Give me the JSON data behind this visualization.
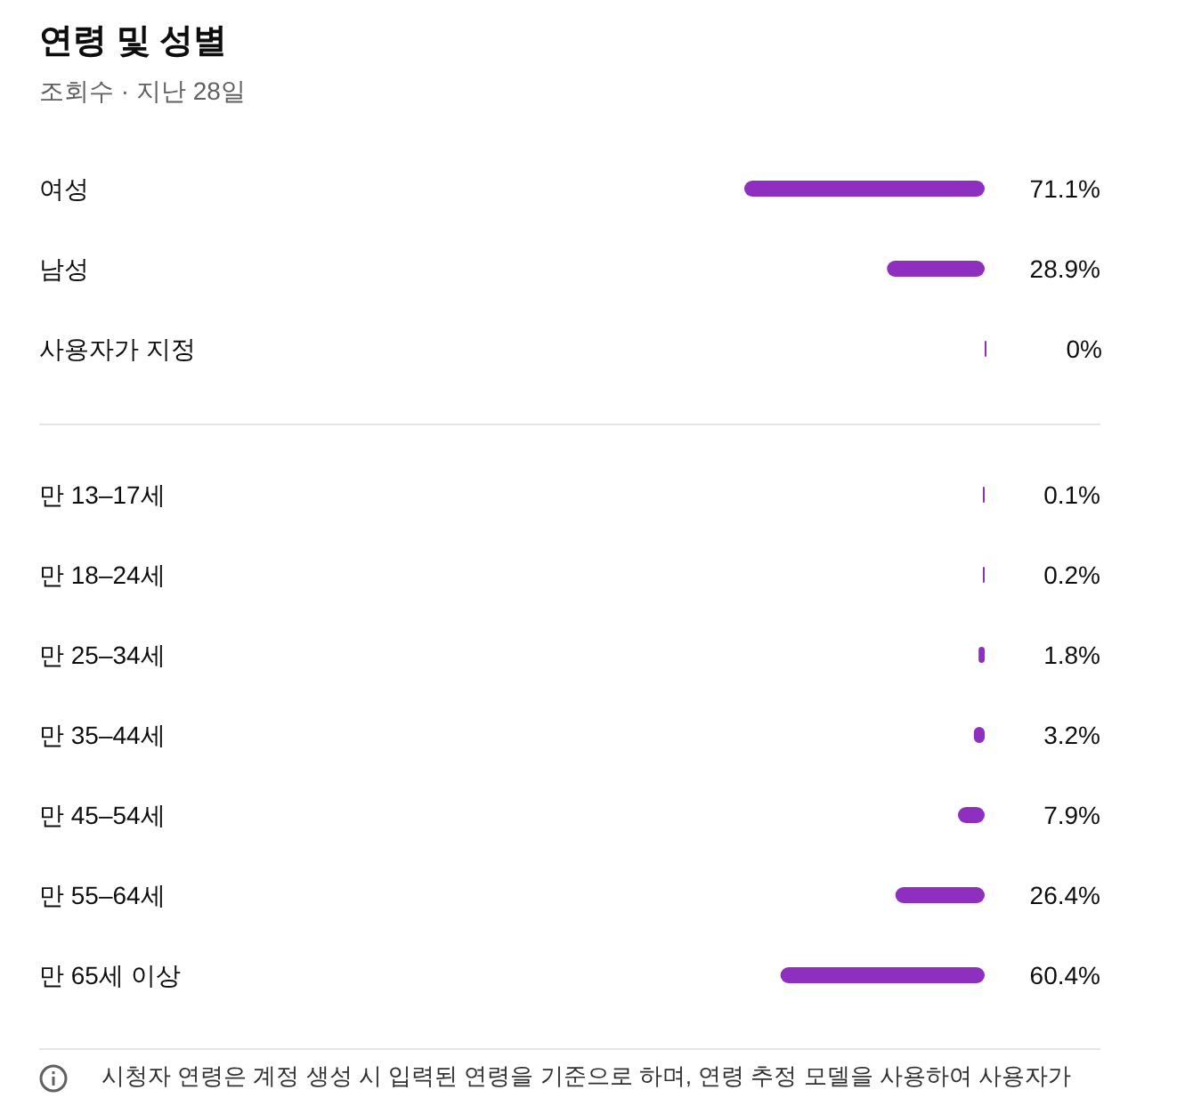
{
  "chart_data": [
    {
      "type": "bar",
      "orientation": "horizontal",
      "title": "연령 및 성별",
      "subtitle": "조회수 · 지난 28일",
      "categories": [
        "여성",
        "남성",
        "사용자가 지정"
      ],
      "values": [
        71.1,
        28.9,
        0
      ],
      "value_labels": [
        "71.1%",
        "28.9%",
        "0%"
      ],
      "color": "#8e2fbf"
    },
    {
      "type": "bar",
      "orientation": "horizontal",
      "categories": [
        "만 13–17세",
        "만 18–24세",
        "만 25–34세",
        "만 35–44세",
        "만 45–54세",
        "만 55–64세",
        "만 65세 이상"
      ],
      "values": [
        0.1,
        0.2,
        1.8,
        3.2,
        7.9,
        26.4,
        60.4
      ],
      "value_labels": [
        "0.1%",
        "0.2%",
        "1.8%",
        "3.2%",
        "7.9%",
        "26.4%",
        "60.4%"
      ],
      "color": "#8e2fbf",
      "annotations": [
        "시청자 연령은 계정 생성 시 입력된 연령을 기준으로 하며, 연령 추정 모델을 사용하여 사용자가"
      ]
    }
  ]
}
